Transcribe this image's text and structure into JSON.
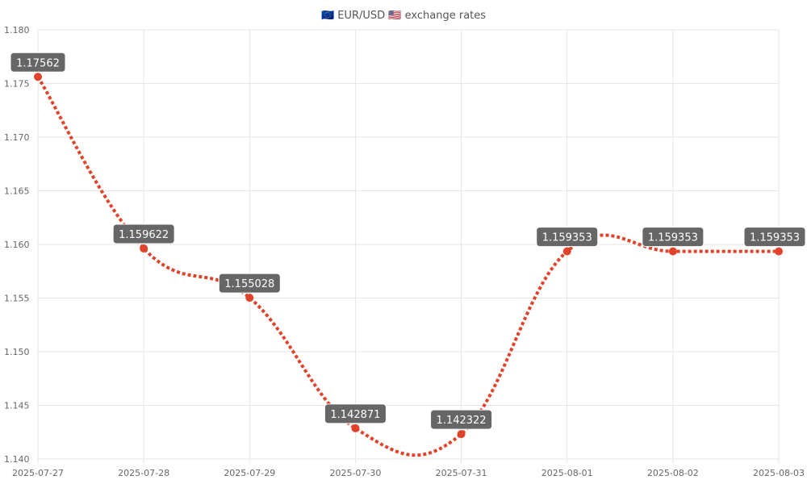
{
  "chart_data": {
    "type": "line",
    "title": "🇪🇺 EUR/USD 🇺🇸 exchange rates",
    "xlabel": "",
    "ylabel": "",
    "categories": [
      "2025-07-27",
      "2025-07-28",
      "2025-07-29",
      "2025-07-30",
      "2025-07-31",
      "2025-08-01",
      "2025-08-02",
      "2025-08-03"
    ],
    "series": [
      {
        "values": [
          1.17562,
          1.159622,
          1.155028,
          1.142871,
          1.142322,
          1.159353,
          1.159353,
          1.159353
        ],
        "labels": [
          "1.17562",
          "1.159622",
          "1.155028",
          "1.142871",
          "1.142322",
          "1.159353",
          "1.159353",
          "1.159353"
        ],
        "color": "#e0422a"
      }
    ],
    "ylim": [
      1.14,
      1.18
    ],
    "yticks": [
      "1.140",
      "1.145",
      "1.150",
      "1.155",
      "1.160",
      "1.165",
      "1.170",
      "1.175",
      "1.180"
    ],
    "line_style": "dotted",
    "grid": true,
    "legend": "none"
  }
}
